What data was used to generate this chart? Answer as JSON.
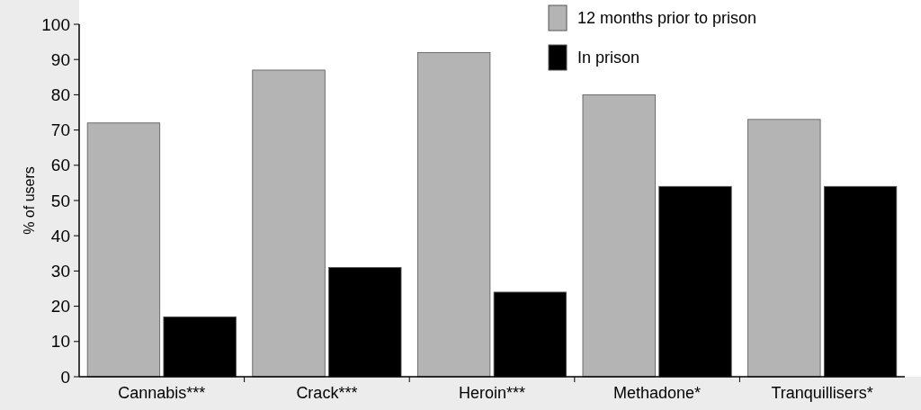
{
  "chart_data": {
    "type": "bar",
    "ylabel": "% of users",
    "categories": [
      "Cannabis***",
      "Crack***",
      "Heroin***",
      "Methadone*",
      "Tranquillisers*"
    ],
    "series": [
      {
        "name": "12 months prior to prison",
        "color": "#b4b4b4",
        "values": [
          72,
          87,
          92,
          80,
          73
        ]
      },
      {
        "name": "In prison",
        "color": "#000000",
        "values": [
          17,
          31,
          24,
          54,
          54
        ]
      }
    ],
    "ylim": [
      0,
      100
    ],
    "yticks": [
      0,
      10,
      20,
      30,
      40,
      50,
      60,
      70,
      80,
      90,
      100
    ],
    "legend": "top right",
    "grid": false
  }
}
